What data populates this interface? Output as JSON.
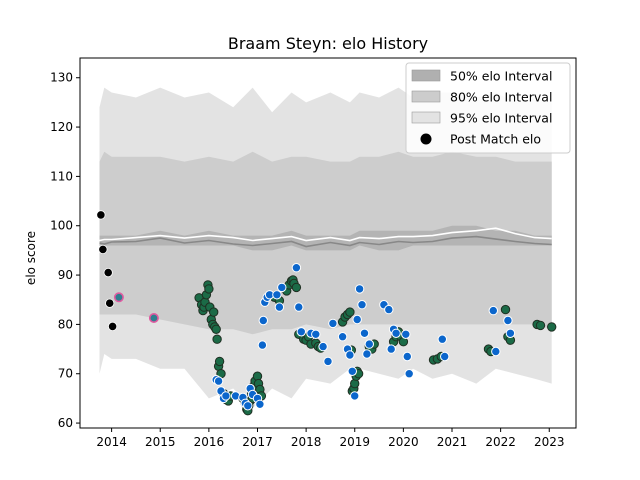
{
  "chart_data": {
    "type": "scatter",
    "title": "Braam Steyn: elo History",
    "xlabel": "",
    "ylabel": "elo score",
    "xlim": [
      2013.35,
      2023.55
    ],
    "ylim": [
      59,
      134
    ],
    "x_ticks": [
      2014,
      2015,
      2016,
      2017,
      2018,
      2019,
      2020,
      2021,
      2022,
      2023
    ],
    "y_ticks": [
      60,
      70,
      80,
      90,
      100,
      110,
      120,
      130
    ],
    "legend_position": "top-right",
    "legend": [
      {
        "label": "50% elo Interval",
        "kind": "band",
        "color": "#b0b0b0"
      },
      {
        "label": "80% elo Interval",
        "kind": "band",
        "color": "#cccccc"
      },
      {
        "label": "95% elo Interval",
        "kind": "band",
        "color": "#e3e3e3"
      },
      {
        "label": "Post Match elo",
        "kind": "marker",
        "color": "#000000"
      }
    ],
    "colors": {
      "band95": "#e3e3e3",
      "band80": "#cdcdcd",
      "band50": "#b4b4b4",
      "mean_line": "#888888",
      "median_line": "#ffffff",
      "early_point": "#000000",
      "green_point": "#1b6b47",
      "green_edge": "#1f2f22",
      "blue_point": "#0b66cc",
      "blue_edge": "#ffffff",
      "pink_point": "#2f7f8f",
      "pink_edge": "#e05aa0"
    },
    "band_x": [
      2013.75,
      2013.85,
      2014.0,
      2014.5,
      2015.0,
      2015.5,
      2016.0,
      2016.5,
      2016.9,
      2017.3,
      2017.7,
      2018.0,
      2018.5,
      2018.9,
      2019.1,
      2019.5,
      2019.9,
      2020.2,
      2020.6,
      2021.0,
      2021.5,
      2021.9,
      2022.3,
      2022.7,
      2023.05
    ],
    "band95_upper": [
      124,
      128,
      127,
      126,
      128,
      126,
      127,
      124,
      128,
      123,
      127,
      125,
      127,
      125,
      127,
      126,
      128,
      126,
      127,
      127,
      126,
      127,
      125,
      126,
      125
    ],
    "band95_lower": [
      70,
      74,
      73,
      73,
      71,
      71,
      65,
      67,
      63,
      67,
      65,
      69,
      68,
      71,
      71,
      70,
      69,
      71,
      69,
      70,
      68,
      71,
      70,
      69,
      68
    ],
    "band80_upper": [
      113,
      115,
      114,
      114,
      114,
      113,
      114,
      113,
      115,
      113,
      114,
      114,
      113,
      113,
      114,
      114,
      115,
      114,
      114,
      115,
      114,
      114,
      113,
      113,
      113
    ],
    "band80_lower": [
      82,
      82,
      82,
      82,
      81,
      80,
      79,
      79,
      78,
      79,
      79,
      80,
      79,
      80,
      80,
      80,
      80,
      80,
      80,
      80,
      80,
      80,
      80,
      80,
      79
    ],
    "band50_upper": [
      98,
      98,
      98,
      98,
      99,
      98,
      99,
      98,
      98,
      98,
      99,
      98,
      98,
      98,
      99,
      99,
      99,
      99,
      99,
      100,
      100,
      99,
      99,
      98,
      98
    ],
    "band50_lower": [
      96,
      96,
      96,
      96,
      96,
      96,
      96,
      96,
      95,
      95,
      96,
      95,
      95,
      95,
      96,
      95,
      95,
      96,
      96,
      96,
      96,
      96,
      96,
      96,
      96
    ],
    "mean_line": [
      96.5,
      96.3,
      96.7,
      96.8,
      97.5,
      96.5,
      97.0,
      96.3,
      96.0,
      96.4,
      96.8,
      95.8,
      96.6,
      96.0,
      96.6,
      96.2,
      96.8,
      96.6,
      96.8,
      97.5,
      97.8,
      97.3,
      96.8,
      96.4,
      96.2
    ],
    "median_line": [
      97.0,
      97.2,
      97.2,
      97.6,
      98.0,
      97.5,
      98.0,
      97.6,
      97.0,
      97.4,
      97.8,
      97.0,
      97.6,
      97.0,
      97.6,
      97.4,
      97.8,
      97.8,
      98.0,
      98.6,
      99.0,
      99.5,
      98.4,
      97.6,
      97.4
    ],
    "series": [
      {
        "name": "Post Match elo",
        "style": "early",
        "x": [
          2013.78,
          2013.82,
          2013.93,
          2013.96,
          2014.02
        ],
        "y": [
          102.2,
          95.2,
          90.5,
          84.3,
          79.6
        ]
      },
      {
        "style": "pink",
        "x": [
          2014.15,
          2014.87
        ],
        "y": [
          85.5,
          81.3
        ]
      },
      {
        "style": "green",
        "x": [
          2015.8,
          2015.85,
          2015.88,
          2015.9,
          2015.92,
          2015.95,
          2015.98,
          2016.0,
          2016.02,
          2016.05,
          2016.08,
          2016.1,
          2016.12,
          2016.15,
          2016.17,
          2016.2,
          2016.22,
          2016.25,
          2016.3,
          2016.35,
          2016.4,
          2016.45,
          2016.7,
          2016.75,
          2016.78,
          2016.8,
          2016.82,
          2016.85,
          2016.88,
          2016.9,
          2016.92,
          2016.95,
          2017.0,
          2017.02,
          2017.05,
          2017.08,
          2017.35,
          2017.4,
          2017.45,
          2017.6,
          2017.65,
          2017.7,
          2017.73,
          2017.75,
          2017.8,
          2017.85,
          2017.95,
          2018.0,
          2018.05,
          2018.1,
          2018.2,
          2018.25,
          2018.3,
          2018.75,
          2018.8,
          2018.85,
          2018.9,
          2018.93,
          2018.95,
          2018.98,
          2019.0,
          2019.03,
          2019.05,
          2019.08,
          2019.3,
          2019.35,
          2019.4,
          2019.8,
          2019.85,
          2019.9,
          2019.95,
          2020.0,
          2020.62,
          2020.7,
          2020.78,
          2021.75,
          2021.8,
          2022.1,
          2022.15,
          2022.2,
          2022.75,
          2022.82,
          2023.05
        ],
        "y": [
          85.4,
          84.0,
          82.8,
          83.5,
          84.5,
          86.0,
          88.0,
          87.2,
          83.5,
          81.0,
          80.0,
          82.5,
          79.5,
          79.0,
          77.0,
          71.5,
          72.5,
          70.0,
          66.0,
          64.8,
          64.5,
          65.5,
          65.0,
          64.0,
          62.8,
          62.5,
          63.5,
          64.5,
          66.0,
          65.0,
          67.5,
          68.5,
          69.5,
          68.0,
          66.8,
          65.5,
          85.5,
          86.0,
          84.8,
          86.8,
          88.0,
          88.8,
          89.0,
          88.3,
          87.5,
          78.0,
          77.0,
          76.8,
          77.5,
          76.0,
          76.2,
          75.5,
          75.2,
          80.5,
          81.5,
          82.0,
          82.5,
          74.8,
          66.5,
          67.0,
          68.0,
          69.5,
          70.5,
          70.0,
          75.5,
          75.0,
          76.0,
          76.5,
          77.5,
          78.5,
          77.5,
          76.5,
          72.8,
          73.0,
          73.5,
          75.0,
          74.5,
          83.0,
          77.5,
          76.8,
          80.0,
          79.8,
          79.5
        ]
      },
      {
        "style": "blue",
        "x": [
          2016.15,
          2016.2,
          2016.25,
          2016.3,
          2016.35,
          2016.55,
          2016.7,
          2016.75,
          2016.8,
          2016.85,
          2016.9,
          2017.0,
          2017.05,
          2017.1,
          2017.12,
          2017.15,
          2017.2,
          2017.25,
          2017.4,
          2017.45,
          2017.5,
          2017.8,
          2017.85,
          2017.9,
          2018.1,
          2018.2,
          2018.35,
          2018.45,
          2018.55,
          2018.75,
          2018.85,
          2018.9,
          2018.95,
          2019.0,
          2019.05,
          2019.1,
          2019.15,
          2019.2,
          2019.25,
          2019.3,
          2019.6,
          2019.7,
          2019.75,
          2019.8,
          2019.85,
          2020.05,
          2020.08,
          2020.12,
          2020.8,
          2020.85,
          2021.85,
          2021.9,
          2022.15,
          2022.2
        ],
        "y": [
          68.8,
          68.5,
          66.5,
          65.0,
          65.5,
          65.5,
          65.2,
          64.0,
          63.5,
          67.0,
          65.8,
          65.0,
          63.8,
          75.8,
          80.8,
          84.5,
          85.5,
          86.0,
          86.0,
          83.5,
          87.5,
          91.5,
          83.5,
          78.5,
          78.2,
          78.0,
          75.5,
          72.5,
          80.2,
          77.5,
          75.0,
          73.8,
          70.5,
          65.5,
          81.0,
          87.2,
          84.0,
          78.2,
          74.0,
          76.0,
          84.0,
          83.0,
          75.0,
          79.0,
          78.2,
          78.0,
          73.5,
          70.0,
          77.0,
          73.5,
          82.8,
          74.5,
          80.8,
          78.2
        ]
      }
    ]
  }
}
